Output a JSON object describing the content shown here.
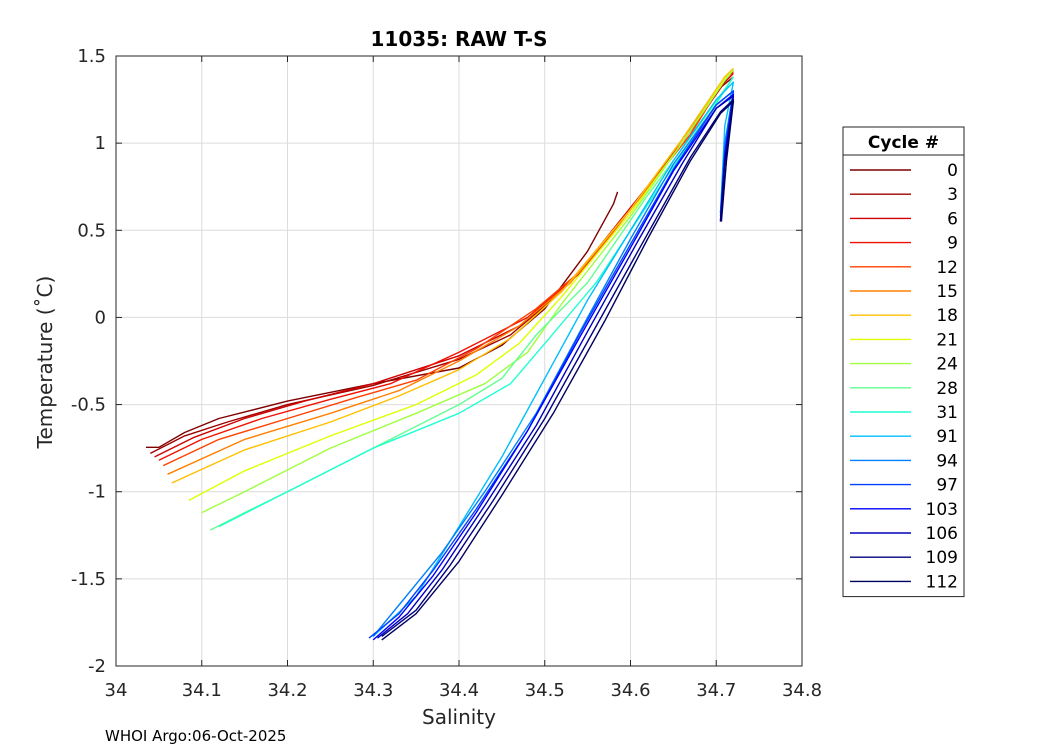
{
  "chart_data": {
    "type": "line",
    "title": "11035: RAW T-S",
    "xlabel": "Salinity",
    "ylabel": "Temperature (˚C)",
    "xlim": [
      34,
      34.8
    ],
    "ylim": [
      -2,
      1.5
    ],
    "xticks": [
      "34",
      "34.1",
      "34.2",
      "34.3",
      "34.4",
      "34.5",
      "34.6",
      "34.7",
      "34.8"
    ],
    "yticks": [
      "1.5",
      "1",
      "0.5",
      "0",
      "-0.5",
      "-1",
      "-1.5",
      "-2"
    ],
    "grid": true,
    "legend": {
      "title": "Cycle #",
      "placement": "right"
    },
    "series": [
      {
        "name": "0",
        "color": "#7f0000",
        "points": [
          [
            34.035,
            -0.745
          ],
          [
            34.05,
            -0.745
          ],
          [
            34.08,
            -0.66
          ],
          [
            34.12,
            -0.58
          ],
          [
            34.2,
            -0.48
          ],
          [
            34.3,
            -0.38
          ],
          [
            34.4,
            -0.29
          ],
          [
            34.45,
            -0.16
          ],
          [
            34.5,
            0.05
          ],
          [
            34.55,
            0.38
          ],
          [
            34.58,
            0.65
          ],
          [
            34.585,
            0.72
          ]
        ]
      },
      {
        "name": "3",
        "color": "#9f0000",
        "points": [
          [
            34.04,
            -0.78
          ],
          [
            34.08,
            -0.68
          ],
          [
            34.13,
            -0.6
          ],
          [
            34.2,
            -0.5
          ],
          [
            34.3,
            -0.39
          ],
          [
            34.4,
            -0.24
          ],
          [
            34.46,
            -0.1
          ],
          [
            34.52,
            0.15
          ],
          [
            34.6,
            0.62
          ],
          [
            34.65,
            0.95
          ],
          [
            34.7,
            1.3
          ],
          [
            34.72,
            1.38
          ]
        ]
      },
      {
        "name": "6",
        "color": "#cf0000",
        "points": [
          [
            34.045,
            -0.8
          ],
          [
            34.09,
            -0.69
          ],
          [
            34.15,
            -0.58
          ],
          [
            34.22,
            -0.48
          ],
          [
            34.3,
            -0.38
          ],
          [
            34.4,
            -0.22
          ],
          [
            34.47,
            -0.05
          ],
          [
            34.53,
            0.2
          ],
          [
            34.6,
            0.63
          ],
          [
            34.66,
            1.0
          ],
          [
            34.71,
            1.35
          ],
          [
            34.72,
            1.4
          ]
        ]
      },
      {
        "name": "9",
        "color": "#ef1000",
        "points": [
          [
            34.05,
            -0.82
          ],
          [
            34.1,
            -0.7
          ],
          [
            34.17,
            -0.58
          ],
          [
            34.25,
            -0.47
          ],
          [
            34.32,
            -0.38
          ],
          [
            34.4,
            -0.2
          ],
          [
            34.48,
            0.0
          ],
          [
            34.54,
            0.25
          ],
          [
            34.6,
            0.62
          ],
          [
            34.67,
            1.05
          ],
          [
            34.71,
            1.37
          ],
          [
            34.72,
            1.41
          ]
        ]
      },
      {
        "name": "12",
        "color": "#ff4000",
        "points": [
          [
            34.055,
            -0.85
          ],
          [
            34.12,
            -0.7
          ],
          [
            34.2,
            -0.58
          ],
          [
            34.28,
            -0.46
          ],
          [
            34.35,
            -0.36
          ],
          [
            34.42,
            -0.18
          ],
          [
            34.49,
            0.05
          ],
          [
            34.55,
            0.3
          ],
          [
            34.6,
            0.62
          ],
          [
            34.67,
            1.05
          ],
          [
            34.71,
            1.37
          ],
          [
            34.72,
            1.42
          ]
        ]
      },
      {
        "name": "15",
        "color": "#ff8000",
        "points": [
          [
            34.06,
            -0.9
          ],
          [
            34.15,
            -0.7
          ],
          [
            34.25,
            -0.55
          ],
          [
            34.33,
            -0.42
          ],
          [
            34.4,
            -0.25
          ],
          [
            34.47,
            -0.05
          ],
          [
            34.53,
            0.2
          ],
          [
            34.6,
            0.62
          ],
          [
            34.66,
            1.02
          ],
          [
            34.71,
            1.38
          ],
          [
            34.72,
            1.42
          ]
        ]
      },
      {
        "name": "18",
        "color": "#ffbf00",
        "points": [
          [
            34.065,
            -0.95
          ],
          [
            34.15,
            -0.76
          ],
          [
            34.25,
            -0.6
          ],
          [
            34.33,
            -0.45
          ],
          [
            34.4,
            -0.3
          ],
          [
            34.46,
            -0.12
          ],
          [
            34.52,
            0.15
          ],
          [
            34.6,
            0.62
          ],
          [
            34.66,
            1.02
          ],
          [
            34.71,
            1.38
          ],
          [
            34.72,
            1.43
          ]
        ]
      },
      {
        "name": "21",
        "color": "#dfff00",
        "points": [
          [
            34.085,
            -1.05
          ],
          [
            34.15,
            -0.88
          ],
          [
            34.25,
            -0.68
          ],
          [
            34.35,
            -0.5
          ],
          [
            34.42,
            -0.33
          ],
          [
            34.47,
            -0.15
          ],
          [
            34.52,
            0.12
          ],
          [
            34.6,
            0.6
          ],
          [
            34.66,
            1.0
          ],
          [
            34.71,
            1.37
          ],
          [
            34.72,
            1.42
          ]
        ]
      },
      {
        "name": "24",
        "color": "#9fff40",
        "points": [
          [
            34.1,
            -1.12
          ],
          [
            34.15,
            -1.0
          ],
          [
            34.25,
            -0.75
          ],
          [
            34.35,
            -0.55
          ],
          [
            34.43,
            -0.38
          ],
          [
            34.48,
            -0.2
          ],
          [
            34.52,
            0.08
          ],
          [
            34.6,
            0.58
          ],
          [
            34.66,
            1.0
          ],
          [
            34.71,
            1.36
          ],
          [
            34.72,
            1.42
          ]
        ]
      },
      {
        "name": "28",
        "color": "#60ff90",
        "points": [
          [
            34.11,
            -1.22
          ],
          [
            34.15,
            -1.12
          ],
          [
            34.2,
            -1.0
          ],
          [
            34.3,
            -0.75
          ],
          [
            34.4,
            -0.5
          ],
          [
            34.45,
            -0.35
          ],
          [
            34.49,
            -0.1
          ],
          [
            34.55,
            0.2
          ],
          [
            34.62,
            0.7
          ],
          [
            34.68,
            1.1
          ],
          [
            34.72,
            1.38
          ]
        ]
      },
      {
        "name": "31",
        "color": "#20ffd0",
        "points": [
          [
            34.12,
            -1.2
          ],
          [
            34.16,
            -1.1
          ],
          [
            34.22,
            -0.95
          ],
          [
            34.3,
            -0.75
          ],
          [
            34.4,
            -0.55
          ],
          [
            34.46,
            -0.38
          ],
          [
            34.5,
            -0.15
          ],
          [
            34.56,
            0.2
          ],
          [
            34.63,
            0.72
          ],
          [
            34.69,
            1.15
          ],
          [
            34.72,
            1.38
          ]
        ]
      },
      {
        "name": "91",
        "color": "#00bfff",
        "points": [
          [
            34.3,
            -1.83
          ],
          [
            34.35,
            -1.6
          ],
          [
            34.4,
            -1.2
          ],
          [
            34.45,
            -0.8
          ],
          [
            34.5,
            -0.35
          ],
          [
            34.55,
            0.1
          ],
          [
            34.6,
            0.5
          ],
          [
            34.65,
            0.9
          ],
          [
            34.7,
            1.25
          ],
          [
            34.72,
            1.35
          ],
          [
            34.71,
            1.1
          ],
          [
            34.705,
            0.6
          ]
        ]
      },
      {
        "name": "94",
        "color": "#0080ff",
        "points": [
          [
            34.3,
            -1.83
          ],
          [
            34.33,
            -1.65
          ],
          [
            34.38,
            -1.35
          ],
          [
            34.43,
            -1.0
          ],
          [
            34.49,
            -0.55
          ],
          [
            34.55,
            0.0
          ],
          [
            34.6,
            0.45
          ],
          [
            34.65,
            0.88
          ],
          [
            34.7,
            1.22
          ],
          [
            34.72,
            1.3
          ],
          [
            34.71,
            1.0
          ],
          [
            34.705,
            0.6
          ]
        ]
      },
      {
        "name": "97",
        "color": "#0040ff",
        "points": [
          [
            34.295,
            -1.84
          ],
          [
            34.33,
            -1.7
          ],
          [
            34.37,
            -1.45
          ],
          [
            34.42,
            -1.1
          ],
          [
            34.48,
            -0.65
          ],
          [
            34.54,
            -0.1
          ],
          [
            34.6,
            0.42
          ],
          [
            34.65,
            0.85
          ],
          [
            34.7,
            1.22
          ],
          [
            34.72,
            1.3
          ],
          [
            34.71,
            0.95
          ],
          [
            34.705,
            0.58
          ]
        ]
      },
      {
        "name": "103",
        "color": "#0000ff",
        "points": [
          [
            34.3,
            -1.85
          ],
          [
            34.33,
            -1.72
          ],
          [
            34.37,
            -1.48
          ],
          [
            34.42,
            -1.12
          ],
          [
            34.48,
            -0.65
          ],
          [
            34.54,
            -0.12
          ],
          [
            34.6,
            0.4
          ],
          [
            34.65,
            0.84
          ],
          [
            34.7,
            1.2
          ],
          [
            34.72,
            1.28
          ],
          [
            34.71,
            0.92
          ],
          [
            34.705,
            0.56
          ]
        ]
      },
      {
        "name": "106",
        "color": "#0000bf",
        "points": [
          [
            34.305,
            -1.84
          ],
          [
            34.34,
            -1.7
          ],
          [
            34.38,
            -1.45
          ],
          [
            34.43,
            -1.08
          ],
          [
            34.49,
            -0.62
          ],
          [
            34.55,
            -0.08
          ],
          [
            34.61,
            0.45
          ],
          [
            34.66,
            0.88
          ],
          [
            34.7,
            1.2
          ],
          [
            34.72,
            1.27
          ],
          [
            34.71,
            0.9
          ],
          [
            34.705,
            0.55
          ]
        ]
      },
      {
        "name": "109",
        "color": "#000080",
        "points": [
          [
            34.31,
            -1.83
          ],
          [
            34.35,
            -1.68
          ],
          [
            34.39,
            -1.42
          ],
          [
            34.44,
            -1.05
          ],
          [
            34.5,
            -0.58
          ],
          [
            34.56,
            -0.05
          ],
          [
            34.62,
            0.48
          ],
          [
            34.67,
            0.92
          ],
          [
            34.705,
            1.18
          ],
          [
            34.72,
            1.25
          ],
          [
            34.71,
            0.88
          ],
          [
            34.705,
            0.55
          ]
        ]
      },
      {
        "name": "112",
        "color": "#000060",
        "points": [
          [
            34.31,
            -1.85
          ],
          [
            34.35,
            -1.7
          ],
          [
            34.4,
            -1.4
          ],
          [
            34.45,
            -1.02
          ],
          [
            34.51,
            -0.55
          ],
          [
            34.57,
            -0.02
          ],
          [
            34.62,
            0.45
          ],
          [
            34.67,
            0.9
          ],
          [
            34.705,
            1.17
          ],
          [
            34.72,
            1.24
          ],
          [
            34.712,
            0.9
          ],
          [
            34.706,
            0.55
          ]
        ]
      }
    ]
  },
  "footer": "WHOI Argo:06-Oct-2025"
}
